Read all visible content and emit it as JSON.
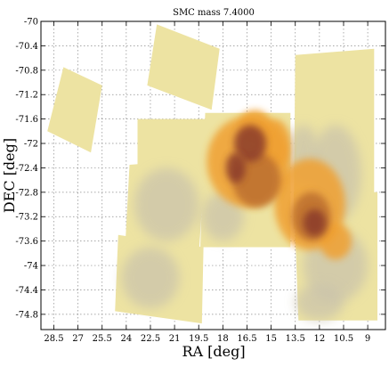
{
  "chart_data": {
    "type": "heatmap",
    "title": "SMC mass  7.4000",
    "xlabel": "RA [deg]",
    "ylabel": "DEC [deg]",
    "xlim": [
      29.3,
      7.9
    ],
    "ylim": [
      -75.05,
      -70.0
    ],
    "x_ticks": [
      "28.5",
      "27",
      "25.5",
      "24",
      "22.5",
      "21",
      "19.5",
      "18",
      "16.5",
      "15",
      "13.5",
      "12",
      "10.5",
      "9"
    ],
    "x_tick_values": [
      28.5,
      27,
      25.5,
      24,
      22.5,
      21,
      19.5,
      18,
      16.5,
      15,
      13.5,
      12,
      10.5,
      9
    ],
    "y_ticks": [
      "-70",
      "-70.4",
      "-70.8",
      "-71.2",
      "-71.6",
      "-72",
      "-72.4",
      "-72.8",
      "-73.2",
      "-73.6",
      "-74",
      "-74.4",
      "-74.8"
    ],
    "y_tick_values": [
      -70,
      -70.4,
      -70.8,
      -71.2,
      -71.6,
      -72,
      -72.4,
      -72.8,
      -73.2,
      -73.6,
      -74,
      -74.4,
      -74.8
    ],
    "grid": true,
    "colors": {
      "survey_field": "#ede3a2",
      "low_density": "#c9c2ac",
      "medium_density": "#f0a030",
      "high_density": "#b86a2e",
      "peak_density": "#8a3a2a"
    },
    "survey_fields": [
      {
        "name": "field-ne",
        "corners": [
          [
            22.1,
            -70.05
          ],
          [
            18.2,
            -70.45
          ],
          [
            18.7,
            -71.45
          ],
          [
            22.7,
            -71.05
          ]
        ]
      },
      {
        "name": "field-nw",
        "corners": [
          [
            27.9,
            -70.75
          ],
          [
            25.5,
            -71.05
          ],
          [
            26.2,
            -72.15
          ],
          [
            28.9,
            -71.8
          ]
        ]
      },
      {
        "name": "field-upper-mid",
        "corners": [
          [
            23.3,
            -71.6
          ],
          [
            17.2,
            -71.6
          ],
          [
            17.2,
            -72.35
          ],
          [
            23.3,
            -72.35
          ]
        ]
      },
      {
        "name": "field-west-mid",
        "corners": [
          [
            23.8,
            -72.35
          ],
          [
            19.1,
            -72.25
          ],
          [
            19.5,
            -73.85
          ],
          [
            24.1,
            -73.85
          ]
        ]
      },
      {
        "name": "field-southwest",
        "corners": [
          [
            24.5,
            -73.5
          ],
          [
            19.2,
            -73.7
          ],
          [
            19.3,
            -74.95
          ],
          [
            24.7,
            -74.75
          ]
        ]
      },
      {
        "name": "field-center",
        "corners": [
          [
            19.1,
            -71.5
          ],
          [
            13.8,
            -71.5
          ],
          [
            13.8,
            -73.7
          ],
          [
            19.4,
            -73.7
          ]
        ]
      },
      {
        "name": "field-northeast",
        "corners": [
          [
            13.5,
            -70.55
          ],
          [
            8.6,
            -70.45
          ],
          [
            8.6,
            -73.4
          ],
          [
            13.6,
            -73.4
          ]
        ]
      },
      {
        "name": "field-southeast",
        "corners": [
          [
            13.6,
            -72.8
          ],
          [
            8.4,
            -72.8
          ],
          [
            8.4,
            -74.9
          ],
          [
            13.3,
            -74.9
          ]
        ]
      }
    ],
    "density_blobs": [
      {
        "ra": 16.4,
        "dec": -72.3,
        "rx": 2.6,
        "ry": 0.75,
        "level": "medium"
      },
      {
        "ra": 15.9,
        "dec": -72.6,
        "rx": 1.5,
        "ry": 0.45,
        "level": "high"
      },
      {
        "ra": 16.3,
        "dec": -72.0,
        "rx": 1.0,
        "ry": 0.3,
        "level": "peak"
      },
      {
        "ra": 17.2,
        "dec": -72.4,
        "rx": 0.6,
        "ry": 0.25,
        "level": "peak"
      },
      {
        "ra": 12.6,
        "dec": -73.0,
        "rx": 2.2,
        "ry": 0.75,
        "level": "medium"
      },
      {
        "ra": 12.5,
        "dec": -73.2,
        "rx": 1.2,
        "ry": 0.4,
        "level": "high"
      },
      {
        "ra": 12.3,
        "dec": -73.3,
        "rx": 0.7,
        "ry": 0.22,
        "level": "peak"
      },
      {
        "ra": 14.8,
        "dec": -72.0,
        "rx": 1.0,
        "ry": 0.4,
        "level": "medium"
      },
      {
        "ra": 16.0,
        "dec": -71.7,
        "rx": 1.0,
        "ry": 0.25,
        "level": "medium"
      },
      {
        "ra": 11.0,
        "dec": -73.6,
        "rx": 1.0,
        "ry": 0.3,
        "level": "medium"
      },
      {
        "ra": 13.0,
        "dec": -72.2,
        "rx": 1.0,
        "ry": 0.5,
        "level": "low"
      },
      {
        "ra": 11.0,
        "dec": -72.5,
        "rx": 1.6,
        "ry": 0.8,
        "level": "low"
      },
      {
        "ra": 11.0,
        "dec": -74.0,
        "rx": 2.0,
        "ry": 0.6,
        "level": "low"
      },
      {
        "ra": 18.0,
        "dec": -73.2,
        "rx": 1.3,
        "ry": 0.4,
        "level": "low"
      },
      {
        "ra": 21.5,
        "dec": -73.0,
        "rx": 2.0,
        "ry": 0.6,
        "level": "low"
      },
      {
        "ra": 22.5,
        "dec": -74.2,
        "rx": 1.8,
        "ry": 0.5,
        "level": "low"
      },
      {
        "ra": 12.0,
        "dec": -74.6,
        "rx": 1.5,
        "ry": 0.3,
        "level": "low"
      }
    ]
  }
}
